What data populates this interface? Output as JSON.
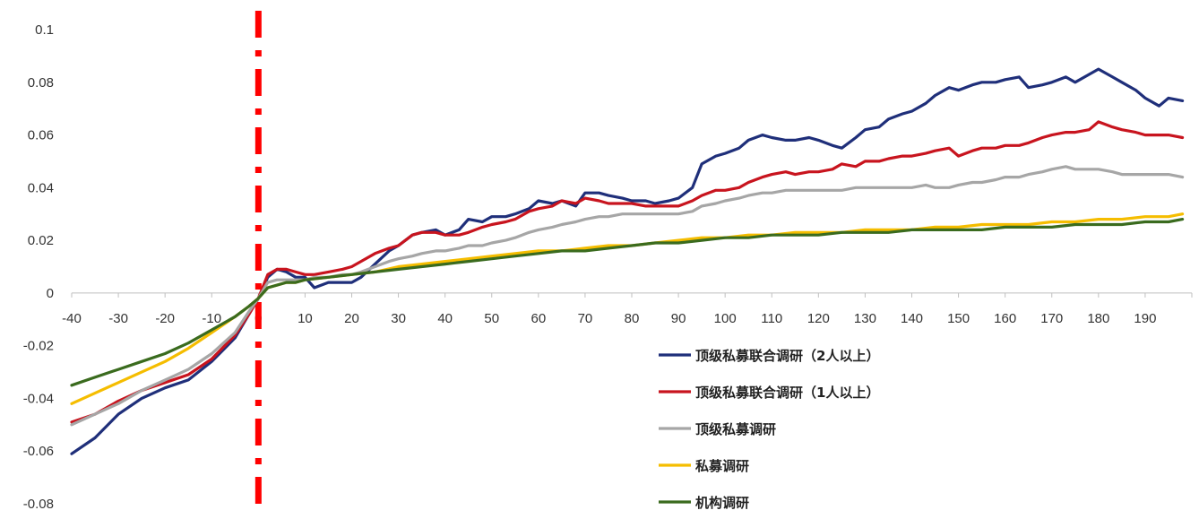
{
  "chart_data": {
    "type": "line",
    "title": "",
    "xlabel": "",
    "ylabel": "",
    "xlim": [
      -40,
      200
    ],
    "ylim": [
      -0.08,
      0.1
    ],
    "x_ticks": [
      -40,
      -30,
      -20,
      -10,
      0,
      10,
      20,
      30,
      40,
      50,
      60,
      70,
      80,
      90,
      100,
      110,
      120,
      130,
      140,
      150,
      160,
      170,
      180,
      190
    ],
    "x_tick_labels": [
      "-40",
      "-30",
      "-20",
      "-10",
      "0",
      "10",
      "20",
      "30",
      "40",
      "50",
      "60",
      "70",
      "80",
      "90",
      "100",
      "110",
      "120",
      "130",
      "140",
      "150",
      "160",
      "170",
      "180",
      "190"
    ],
    "y_ticks": [
      -0.08,
      -0.06,
      -0.04,
      -0.02,
      0,
      0.02,
      0.04,
      0.06,
      0.08,
      0.1
    ],
    "y_tick_labels": [
      "-0.08",
      "-0.06",
      "-0.04",
      "-0.02",
      "0",
      "0.02",
      "0.04",
      "0.06",
      "0.08",
      "0.1"
    ],
    "grid": false,
    "legend_position": "bottom-right",
    "event_line": {
      "x": 0,
      "color": "#ff0000",
      "style": "dashed"
    },
    "series": [
      {
        "name": "顶级私募联合调研（2人以上）",
        "color": "#1f2f7a",
        "x": [
          -40,
          -35,
          -30,
          -25,
          -20,
          -15,
          -10,
          -5,
          -2,
          0,
          2,
          4,
          6,
          8,
          10,
          12,
          15,
          18,
          20,
          22,
          25,
          28,
          30,
          33,
          35,
          38,
          40,
          43,
          45,
          48,
          50,
          53,
          55,
          58,
          60,
          63,
          65,
          68,
          70,
          73,
          75,
          78,
          80,
          83,
          85,
          88,
          90,
          93,
          95,
          98,
          100,
          103,
          105,
          108,
          110,
          113,
          115,
          118,
          120,
          123,
          125,
          128,
          130,
          133,
          135,
          138,
          140,
          143,
          145,
          148,
          150,
          153,
          155,
          158,
          160,
          163,
          165,
          168,
          170,
          173,
          175,
          178,
          180,
          183,
          185,
          188,
          190,
          193,
          195,
          198
        ],
        "values": [
          -0.061,
          -0.055,
          -0.046,
          -0.04,
          -0.036,
          -0.033,
          -0.026,
          -0.017,
          -0.008,
          -0.002,
          0.006,
          0.009,
          0.008,
          0.006,
          0.006,
          0.002,
          0.004,
          0.004,
          0.004,
          0.006,
          0.011,
          0.016,
          0.018,
          0.022,
          0.023,
          0.024,
          0.022,
          0.024,
          0.028,
          0.027,
          0.029,
          0.029,
          0.03,
          0.032,
          0.035,
          0.034,
          0.035,
          0.033,
          0.038,
          0.038,
          0.037,
          0.036,
          0.035,
          0.035,
          0.034,
          0.035,
          0.036,
          0.04,
          0.049,
          0.052,
          0.053,
          0.055,
          0.058,
          0.06,
          0.059,
          0.058,
          0.058,
          0.059,
          0.058,
          0.056,
          0.055,
          0.059,
          0.062,
          0.063,
          0.066,
          0.068,
          0.069,
          0.072,
          0.075,
          0.078,
          0.077,
          0.079,
          0.08,
          0.08,
          0.081,
          0.082,
          0.078,
          0.079,
          0.08,
          0.082,
          0.08,
          0.083,
          0.085,
          0.082,
          0.08,
          0.077,
          0.074,
          0.071,
          0.074,
          0.073
        ]
      },
      {
        "name": "顶级私募联合调研（1人以上）",
        "color": "#c8141e",
        "x": [
          -40,
          -35,
          -30,
          -25,
          -20,
          -15,
          -10,
          -5,
          -2,
          0,
          2,
          4,
          6,
          8,
          10,
          12,
          15,
          18,
          20,
          22,
          25,
          28,
          30,
          33,
          35,
          38,
          40,
          43,
          45,
          48,
          50,
          53,
          55,
          58,
          60,
          63,
          65,
          68,
          70,
          73,
          75,
          78,
          80,
          83,
          85,
          88,
          90,
          93,
          95,
          98,
          100,
          103,
          105,
          108,
          110,
          113,
          115,
          118,
          120,
          123,
          125,
          128,
          130,
          133,
          135,
          138,
          140,
          143,
          145,
          148,
          150,
          153,
          155,
          158,
          160,
          163,
          165,
          168,
          170,
          173,
          175,
          178,
          180,
          183,
          185,
          188,
          190,
          193,
          195,
          198
        ],
        "values": [
          -0.049,
          -0.046,
          -0.041,
          -0.037,
          -0.034,
          -0.031,
          -0.025,
          -0.016,
          -0.008,
          -0.002,
          0.007,
          0.009,
          0.009,
          0.008,
          0.007,
          0.007,
          0.008,
          0.009,
          0.01,
          0.012,
          0.015,
          0.017,
          0.018,
          0.022,
          0.023,
          0.023,
          0.022,
          0.022,
          0.023,
          0.025,
          0.026,
          0.027,
          0.028,
          0.031,
          0.032,
          0.033,
          0.035,
          0.034,
          0.036,
          0.035,
          0.034,
          0.034,
          0.034,
          0.033,
          0.033,
          0.033,
          0.033,
          0.035,
          0.037,
          0.039,
          0.039,
          0.04,
          0.042,
          0.044,
          0.045,
          0.046,
          0.045,
          0.046,
          0.046,
          0.047,
          0.049,
          0.048,
          0.05,
          0.05,
          0.051,
          0.052,
          0.052,
          0.053,
          0.054,
          0.055,
          0.052,
          0.054,
          0.055,
          0.055,
          0.056,
          0.056,
          0.057,
          0.059,
          0.06,
          0.061,
          0.061,
          0.062,
          0.065,
          0.063,
          0.062,
          0.061,
          0.06,
          0.06,
          0.06,
          0.059
        ]
      },
      {
        "name": "顶级私募调研",
        "color": "#a6a6a6",
        "x": [
          -40,
          -35,
          -30,
          -25,
          -20,
          -15,
          -10,
          -5,
          -2,
          0,
          2,
          4,
          6,
          8,
          10,
          12,
          15,
          18,
          20,
          22,
          25,
          28,
          30,
          33,
          35,
          38,
          40,
          43,
          45,
          48,
          50,
          53,
          55,
          58,
          60,
          63,
          65,
          68,
          70,
          73,
          75,
          78,
          80,
          83,
          85,
          88,
          90,
          93,
          95,
          98,
          100,
          103,
          105,
          108,
          110,
          113,
          115,
          118,
          120,
          123,
          125,
          128,
          130,
          133,
          135,
          138,
          140,
          143,
          145,
          148,
          150,
          153,
          155,
          158,
          160,
          163,
          165,
          168,
          170,
          173,
          175,
          178,
          180,
          183,
          185,
          188,
          190,
          193,
          195,
          198
        ],
        "values": [
          -0.05,
          -0.046,
          -0.042,
          -0.037,
          -0.033,
          -0.029,
          -0.023,
          -0.015,
          -0.007,
          -0.002,
          0.004,
          0.005,
          0.005,
          0.005,
          0.005,
          0.006,
          0.006,
          0.007,
          0.007,
          0.008,
          0.01,
          0.012,
          0.013,
          0.014,
          0.015,
          0.016,
          0.016,
          0.017,
          0.018,
          0.018,
          0.019,
          0.02,
          0.021,
          0.023,
          0.024,
          0.025,
          0.026,
          0.027,
          0.028,
          0.029,
          0.029,
          0.03,
          0.03,
          0.03,
          0.03,
          0.03,
          0.03,
          0.031,
          0.033,
          0.034,
          0.035,
          0.036,
          0.037,
          0.038,
          0.038,
          0.039,
          0.039,
          0.039,
          0.039,
          0.039,
          0.039,
          0.04,
          0.04,
          0.04,
          0.04,
          0.04,
          0.04,
          0.041,
          0.04,
          0.04,
          0.041,
          0.042,
          0.042,
          0.043,
          0.044,
          0.044,
          0.045,
          0.046,
          0.047,
          0.048,
          0.047,
          0.047,
          0.047,
          0.046,
          0.045,
          0.045,
          0.045,
          0.045,
          0.045,
          0.044
        ]
      },
      {
        "name": "私募调研",
        "color": "#f5bd00",
        "x": [
          -40,
          -35,
          -30,
          -25,
          -20,
          -15,
          -10,
          -5,
          -2,
          0,
          2,
          4,
          6,
          8,
          10,
          15,
          20,
          25,
          30,
          35,
          40,
          45,
          50,
          55,
          60,
          65,
          70,
          75,
          80,
          85,
          90,
          95,
          100,
          105,
          110,
          115,
          120,
          125,
          130,
          135,
          140,
          145,
          150,
          155,
          160,
          165,
          170,
          175,
          180,
          185,
          190,
          195,
          198
        ],
        "values": [
          -0.042,
          -0.038,
          -0.034,
          -0.03,
          -0.026,
          -0.021,
          -0.015,
          -0.009,
          -0.005,
          -0.002,
          0.002,
          0.003,
          0.004,
          0.004,
          0.005,
          0.006,
          0.007,
          0.008,
          0.01,
          0.011,
          0.012,
          0.013,
          0.014,
          0.015,
          0.016,
          0.016,
          0.017,
          0.018,
          0.018,
          0.019,
          0.02,
          0.021,
          0.021,
          0.022,
          0.022,
          0.023,
          0.023,
          0.023,
          0.024,
          0.024,
          0.024,
          0.025,
          0.025,
          0.026,
          0.026,
          0.026,
          0.027,
          0.027,
          0.028,
          0.028,
          0.029,
          0.029,
          0.03
        ]
      },
      {
        "name": "机构调研",
        "color": "#3a6b1e",
        "x": [
          -40,
          -35,
          -30,
          -25,
          -20,
          -15,
          -10,
          -5,
          -2,
          0,
          2,
          4,
          6,
          8,
          10,
          15,
          20,
          25,
          30,
          35,
          40,
          45,
          50,
          55,
          60,
          65,
          70,
          75,
          80,
          85,
          90,
          95,
          100,
          105,
          110,
          115,
          120,
          125,
          130,
          135,
          140,
          145,
          150,
          155,
          160,
          165,
          170,
          175,
          180,
          185,
          190,
          195,
          198
        ],
        "values": [
          -0.035,
          -0.032,
          -0.029,
          -0.026,
          -0.023,
          -0.019,
          -0.014,
          -0.009,
          -0.005,
          -0.002,
          0.002,
          0.003,
          0.004,
          0.004,
          0.005,
          0.006,
          0.007,
          0.008,
          0.009,
          0.01,
          0.011,
          0.012,
          0.013,
          0.014,
          0.015,
          0.016,
          0.016,
          0.017,
          0.018,
          0.019,
          0.019,
          0.02,
          0.021,
          0.021,
          0.022,
          0.022,
          0.022,
          0.023,
          0.023,
          0.023,
          0.024,
          0.024,
          0.024,
          0.024,
          0.025,
          0.025,
          0.025,
          0.026,
          0.026,
          0.026,
          0.027,
          0.027,
          0.028
        ]
      }
    ]
  }
}
